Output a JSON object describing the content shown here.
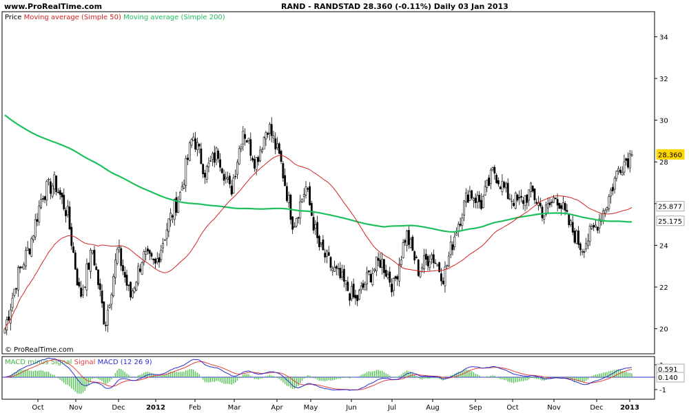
{
  "header": {
    "url": "www.ProRealTime.com",
    "title": "RAND - RANDSTAD    28.360 (-0.11%)    Daily  03 Jan 2013"
  },
  "legend": {
    "price": "Price",
    "ma50": "Moving average (Simple 50)",
    "ma200": "Moving average (Simple 200)"
  },
  "macd_legend": {
    "hist": "MACD minus Signal",
    "signal": "Signal",
    "macd": "MACD",
    "params": "(12 26 9)"
  },
  "copyright": "© ProRealTime.com",
  "colors": {
    "ma50": "#d42020",
    "ma200": "#1cbf5a",
    "macd": "#2b2bd0",
    "signal": "#e23c3c",
    "hist": "#4fc44f",
    "last_price_bg": "#ffd700"
  },
  "chart_data": [
    {
      "type": "candlestick",
      "title": "RAND - RANDSTAD",
      "ylim": [
        18.8,
        35.2
      ],
      "yticks": [
        20,
        22,
        24,
        26,
        28,
        30,
        32,
        34
      ],
      "xticks": [
        "Oct",
        "Nov",
        "Dec",
        "2012",
        "Feb",
        "Mar",
        "Apr",
        "May",
        "Jun",
        "Jul",
        "Aug",
        "Sep",
        "Oct",
        "Nov",
        "Dec",
        "2013"
      ],
      "last_price": 28.36,
      "price_path": [
        [
          "Sep 2011",
          20.0
        ],
        [
          "Sep 2011",
          22.5
        ],
        [
          "Oct 2011",
          24.0
        ],
        [
          "Oct 2011",
          26.5
        ],
        [
          "Oct 2011",
          27.0
        ],
        [
          "Nov 2011",
          25.5
        ],
        [
          "Nov 2011",
          21.5
        ],
        [
          "Nov 2011",
          23.8
        ],
        [
          "Dec 2011",
          20.2
        ],
        [
          "Dec 2011",
          23.8
        ],
        [
          "Dec 2011",
          21.5
        ],
        [
          "Jan 2012",
          23.5
        ],
        [
          "Jan 2012",
          23.0
        ],
        [
          "Jan 2012",
          25.0
        ],
        [
          "Jan 2012",
          26.5
        ],
        [
          "Feb 2012",
          29.3
        ],
        [
          "Feb 2012",
          27.5
        ],
        [
          "Feb 2012",
          28.5
        ],
        [
          "Feb 2012",
          26.5
        ],
        [
          "Mar 2012",
          29.6
        ],
        [
          "Mar 2012",
          28.0
        ],
        [
          "Mar 2012",
          29.8
        ],
        [
          "Apr 2012",
          28.0
        ],
        [
          "Apr 2012",
          25.0
        ],
        [
          "Apr 2012",
          26.8
        ],
        [
          "May 2012",
          24.0
        ],
        [
          "May 2012",
          23.0
        ],
        [
          "May 2012",
          22.2
        ],
        [
          "Jun 2012",
          21.3
        ],
        [
          "Jun 2012",
          22.5
        ],
        [
          "Jun 2012",
          23.3
        ],
        [
          "Jul 2012",
          22.0
        ],
        [
          "Jul 2012",
          24.6
        ],
        [
          "Jul 2012",
          22.8
        ],
        [
          "Jul 2012",
          23.6
        ],
        [
          "Aug 2012",
          22.5
        ],
        [
          "Aug 2012",
          24.8
        ],
        [
          "Aug 2012",
          26.6
        ],
        [
          "Aug 2012",
          26.0
        ],
        [
          "Sep 2012",
          27.6
        ],
        [
          "Sep 2012",
          26.5
        ],
        [
          "Oct 2012",
          26.0
        ],
        [
          "Oct 2012",
          26.6
        ],
        [
          "Oct 2012",
          25.5
        ],
        [
          "Nov 2012",
          26.4
        ],
        [
          "Nov 2012",
          25.0
        ],
        [
          "Nov 2012",
          23.9
        ],
        [
          "Dec 2012",
          24.8
        ],
        [
          "Dec 2012",
          26.0
        ],
        [
          "Dec 2012",
          27.8
        ],
        [
          "Jan 2013",
          28.36
        ]
      ],
      "series": [
        {
          "name": "Moving average (Simple 50)",
          "last": 25.877
        },
        {
          "name": "Moving average (Simple 200)",
          "last": 25.175
        }
      ]
    },
    {
      "type": "line",
      "title": "MACD (12 26 9)",
      "yticks": [
        1,
        -1
      ],
      "series": [
        {
          "name": "MACD",
          "last": 0.5912
        },
        {
          "name": "MACD minus Signal",
          "last": 0.1399
        }
      ]
    }
  ]
}
